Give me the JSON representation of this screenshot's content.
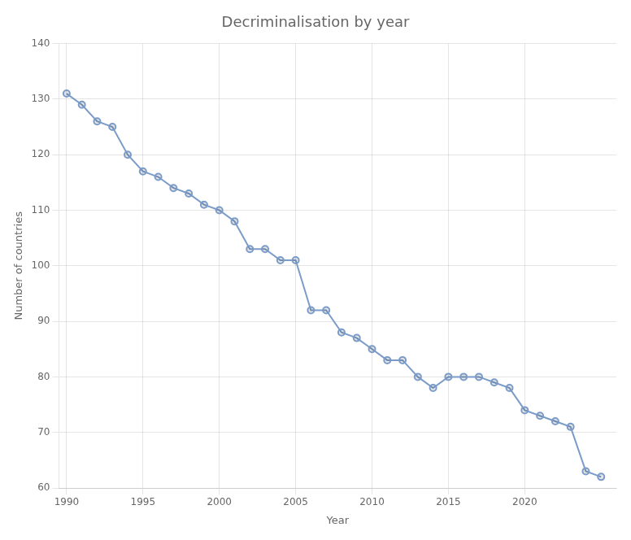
{
  "chart_data": {
    "type": "line",
    "title": "Decriminalisation by year",
    "xlabel": "Year",
    "ylabel": "Number of countries",
    "x": [
      1990,
      1991,
      1992,
      1993,
      1994,
      1995,
      1996,
      1997,
      1998,
      1999,
      2000,
      2001,
      2002,
      2003,
      2004,
      2005,
      2006,
      2007,
      2008,
      2009,
      2010,
      2011,
      2012,
      2013,
      2014,
      2015,
      2016,
      2017,
      2018,
      2019,
      2020,
      2021,
      2022,
      2023,
      2024,
      2025
    ],
    "values": [
      131,
      129,
      126,
      125,
      120,
      117,
      116,
      114,
      113,
      111,
      110,
      108,
      103,
      103,
      101,
      101,
      92,
      92,
      88,
      87,
      85,
      83,
      83,
      80,
      78,
      80,
      80,
      80,
      79,
      78,
      74,
      73,
      72,
      71,
      63,
      62
    ],
    "color": "#7b9cc8",
    "marker": "circle",
    "xlim": [
      1989.5,
      2026.0
    ],
    "ylim": [
      60,
      140
    ],
    "xticks": [
      1990,
      1995,
      2000,
      2005,
      2010,
      2015,
      2020
    ],
    "yticks": [
      60,
      70,
      80,
      90,
      100,
      110,
      120,
      130,
      140
    ],
    "grid": true
  }
}
